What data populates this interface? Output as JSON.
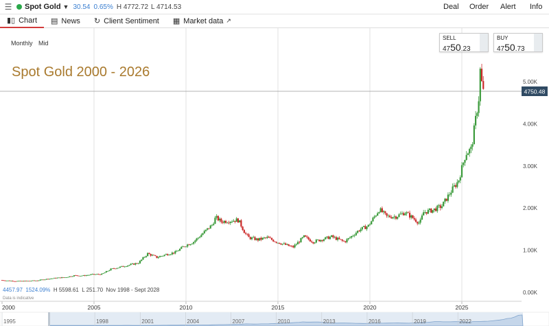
{
  "header": {
    "menu_icon": "hamburger-icon",
    "symbol": "Spot Gold",
    "change": "30.54",
    "change_pct": "0.65%",
    "high": "H 4772.72",
    "low": "L 4714.53",
    "nav": [
      "Deal",
      "Order",
      "Alert",
      "Info"
    ]
  },
  "tabs": [
    {
      "label": "Chart",
      "icon": "candlestick-icon"
    },
    {
      "label": "News",
      "icon": "news-icon"
    },
    {
      "label": "Client Sentiment",
      "icon": "sentiment-icon"
    },
    {
      "label": "Market data",
      "icon": "market-data-icon",
      "external_icon": "external-link-icon"
    }
  ],
  "controls": {
    "interval": "Monthly",
    "price_type": "Mid"
  },
  "quotes": {
    "sell": {
      "label": "SELL",
      "prefix": "47",
      "big": "50",
      "suffix": ".23"
    },
    "buy": {
      "label": "BUY",
      "prefix": "47",
      "big": "50",
      "suffix": ".73"
    }
  },
  "footer": {
    "stats": [
      "4457.97",
      "1524.09%",
      "H 5598.61",
      "L 251.70",
      "Nov 1998 - Sept 2028"
    ],
    "note": "Data is indicative"
  },
  "colors": {
    "up": "#3a9a3a",
    "down": "#cc2a2a",
    "accent": "#a97a2e",
    "price_label": "#2f4a63"
  },
  "chart_data": {
    "type": "candlestick",
    "title": "Spot Gold 2000 - 2026",
    "y_ticks": [
      "0.00K",
      "1.00K",
      "2.00K",
      "3.00K",
      "4.00K",
      "5.00K"
    ],
    "y_tick_values": [
      0,
      1000,
      2000,
      3000,
      4000,
      5000
    ],
    "ylim": [
      0,
      5700
    ],
    "x_ticks": [
      "2000",
      "2005",
      "2010",
      "2015",
      "2020",
      "2025"
    ],
    "navigator_ticks": [
      "1995",
      "1998",
      "2001",
      "2004",
      "2007",
      "2010",
      "2013",
      "2016",
      "2019",
      "2022"
    ],
    "current_price": "4750.48",
    "current_price_value": 4750.48,
    "series": [
      {
        "values": [
          [
            2000.0,
            290
          ],
          [
            2000.5,
            275
          ],
          [
            2001.0,
            265
          ],
          [
            2001.5,
            270
          ],
          [
            2002.0,
            282
          ],
          [
            2002.5,
            315
          ],
          [
            2003.0,
            340
          ],
          [
            2003.5,
            355
          ],
          [
            2004.0,
            400
          ],
          [
            2004.5,
            395
          ],
          [
            2005.0,
            425
          ],
          [
            2005.5,
            430
          ],
          [
            2006.0,
            550
          ],
          [
            2006.5,
            600
          ],
          [
            2007.0,
            650
          ],
          [
            2007.5,
            700
          ],
          [
            2008.0,
            920
          ],
          [
            2008.5,
            830
          ],
          [
            2009.0,
            900
          ],
          [
            2009.5,
            950
          ],
          [
            2010.0,
            1100
          ],
          [
            2010.5,
            1200
          ],
          [
            2011.0,
            1400
          ],
          [
            2011.5,
            1600
          ],
          [
            2011.7,
            1780
          ],
          [
            2012.0,
            1680
          ],
          [
            2012.5,
            1700
          ],
          [
            2012.9,
            1720
          ],
          [
            2013.0,
            1660
          ],
          [
            2013.3,
            1400
          ],
          [
            2013.5,
            1300
          ],
          [
            2014.0,
            1250
          ],
          [
            2014.5,
            1300
          ],
          [
            2015.0,
            1200
          ],
          [
            2015.9,
            1070
          ],
          [
            2016.5,
            1320
          ],
          [
            2017.0,
            1200
          ],
          [
            2017.5,
            1260
          ],
          [
            2018.0,
            1320
          ],
          [
            2018.7,
            1200
          ],
          [
            2019.0,
            1300
          ],
          [
            2019.5,
            1480
          ],
          [
            2020.0,
            1580
          ],
          [
            2020.6,
            1970
          ],
          [
            2021.0,
            1800
          ],
          [
            2021.5,
            1800
          ],
          [
            2022.0,
            1900
          ],
          [
            2022.8,
            1640
          ],
          [
            2023.0,
            1900
          ],
          [
            2023.5,
            1950
          ],
          [
            2024.0,
            2050
          ],
          [
            2024.5,
            2400
          ],
          [
            2024.9,
            2650
          ],
          [
            2025.3,
            3300
          ],
          [
            2025.6,
            3400
          ],
          [
            2025.8,
            4000
          ],
          [
            2026.0,
            4600
          ],
          [
            2026.1,
            5400
          ],
          [
            2026.2,
            4750
          ]
        ]
      }
    ]
  }
}
